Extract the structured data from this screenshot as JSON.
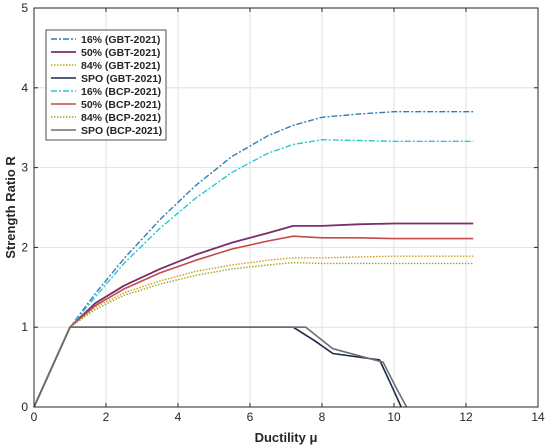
{
  "chart_data": {
    "type": "line",
    "title": "",
    "xlabel": "Ductility μ",
    "ylabel": "Strength Ratio R",
    "xlim": [
      0,
      14
    ],
    "ylim": [
      0,
      5
    ],
    "xticks": [
      0,
      2,
      4,
      6,
      8,
      10,
      12,
      14
    ],
    "yticks": [
      0,
      1,
      2,
      3,
      4,
      5
    ],
    "grid": true,
    "legend_position": "top-left",
    "series": [
      {
        "name": "16% (GBT-2021)",
        "color": "#2e7fb8",
        "dash": "6,2,2,2",
        "width": 1.4,
        "x": [
          0,
          1,
          1.7,
          2.5,
          3.5,
          4.5,
          5.5,
          6.5,
          7.2,
          8.0,
          9.0,
          10.0,
          11.0,
          12.2
        ],
        "y": [
          0,
          1,
          1.42,
          1.86,
          2.35,
          2.78,
          3.14,
          3.4,
          3.53,
          3.63,
          3.67,
          3.7,
          3.7,
          3.7
        ]
      },
      {
        "name": "50% (GBT-2021)",
        "color": "#7b2d6e",
        "dash": "",
        "width": 1.8,
        "x": [
          0,
          1,
          1.7,
          2.5,
          3.5,
          4.5,
          5.5,
          6.5,
          7.2,
          8.0,
          9.0,
          10.0,
          11.0,
          12.2
        ],
        "y": [
          0,
          1,
          1.3,
          1.52,
          1.73,
          1.91,
          2.06,
          2.18,
          2.27,
          2.27,
          2.29,
          2.3,
          2.3,
          2.3
        ]
      },
      {
        "name": "84% (GBT-2021)",
        "color": "#d49a1c",
        "dash": "1.5,1.5",
        "width": 1.4,
        "x": [
          0,
          1,
          1.7,
          2.5,
          3.5,
          4.5,
          5.5,
          6.5,
          7.2,
          8.0,
          9.0,
          10.0,
          11.0,
          12.2
        ],
        "y": [
          0,
          1,
          1.25,
          1.43,
          1.58,
          1.7,
          1.78,
          1.84,
          1.87,
          1.87,
          1.88,
          1.89,
          1.89,
          1.89
        ]
      },
      {
        "name": "SPO (GBT-2021)",
        "color": "#1b2a4a",
        "dash": "",
        "width": 1.6,
        "x": [
          0,
          1,
          7.2,
          7.8,
          8.3,
          9.6,
          9.95,
          10.2
        ],
        "y": [
          0,
          1,
          1,
          0.83,
          0.67,
          0.59,
          0.25,
          0
        ]
      },
      {
        "name": "16% (BCP-2021)",
        "color": "#27c9cf",
        "dash": "6,2,2,2",
        "width": 1.4,
        "x": [
          0,
          1,
          1.7,
          2.5,
          3.5,
          4.5,
          5.5,
          6.5,
          7.2,
          8.0,
          9.0,
          10.0,
          11.0,
          12.2
        ],
        "y": [
          0,
          1,
          1.38,
          1.8,
          2.24,
          2.62,
          2.94,
          3.18,
          3.29,
          3.35,
          3.34,
          3.33,
          3.33,
          3.33
        ]
      },
      {
        "name": "50% (BCP-2021)",
        "color": "#c44a4a",
        "dash": "",
        "width": 1.6,
        "x": [
          0,
          1,
          1.7,
          2.5,
          3.5,
          4.5,
          5.5,
          6.5,
          7.2,
          8.0,
          9.0,
          10.0,
          11.0,
          12.2
        ],
        "y": [
          0,
          1,
          1.27,
          1.48,
          1.68,
          1.84,
          1.98,
          2.08,
          2.14,
          2.12,
          2.12,
          2.11,
          2.11,
          2.11
        ]
      },
      {
        "name": "84% (BCP-2021)",
        "color": "#8fb02b",
        "dash": "1.5,1.5",
        "width": 1.4,
        "x": [
          0,
          1,
          1.7,
          2.5,
          3.5,
          4.5,
          5.5,
          6.5,
          7.2,
          8.0,
          9.0,
          10.0,
          11.0,
          12.2
        ],
        "y": [
          0,
          1,
          1.22,
          1.4,
          1.54,
          1.65,
          1.73,
          1.78,
          1.81,
          1.8,
          1.8,
          1.8,
          1.8,
          1.8
        ]
      },
      {
        "name": "SPO (BCP-2021)",
        "color": "#6e6e6e",
        "dash": "",
        "width": 1.6,
        "x": [
          0,
          1,
          7.55,
          8.3,
          9.7,
          10.05,
          10.35
        ],
        "y": [
          0,
          1,
          1,
          0.73,
          0.56,
          0.25,
          0
        ]
      }
    ]
  }
}
